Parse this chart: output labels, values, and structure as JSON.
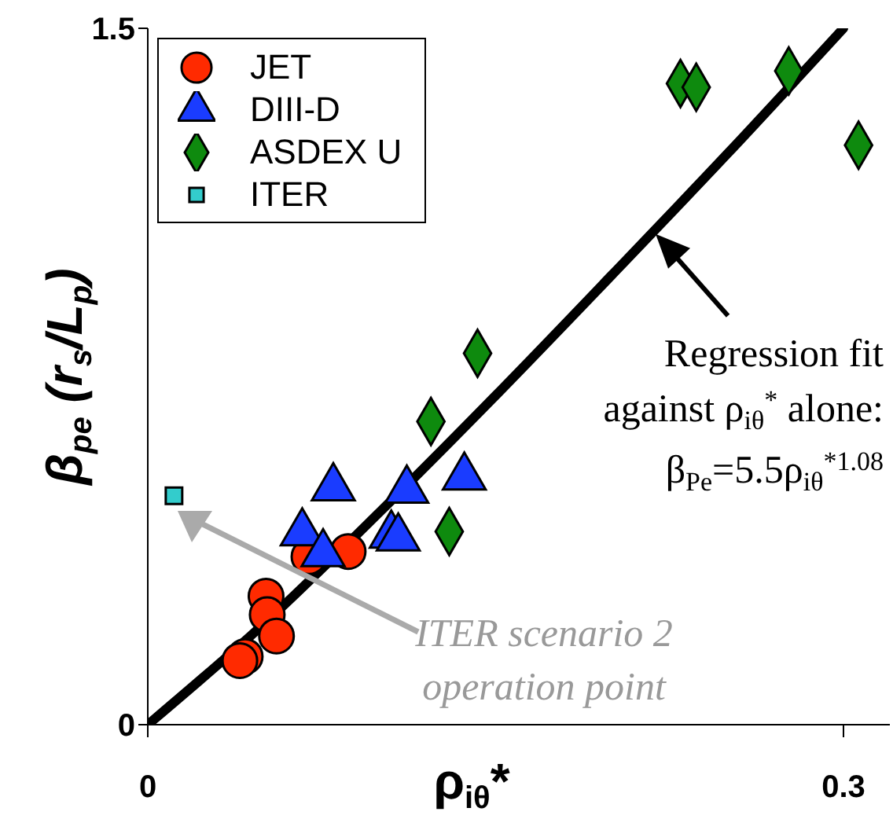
{
  "chart_data": {
    "type": "scatter",
    "xlabel": "ρ$_{iθ}$*",
    "ylabel": "β$_{pe}$ (r$_{s}$/L$_{p}$)",
    "xlim": [
      0,
      0.32
    ],
    "xticks": [
      0,
      0.3
    ],
    "ylim": [
      0,
      1.5
    ],
    "yticks": [
      0,
      1.5
    ],
    "grid": false,
    "legend": "top left",
    "series": [
      {
        "name": "JET",
        "color": "#ff2a00",
        "marker": "circle",
        "x": [
          0.0695,
          0.0864,
          0.051,
          0.0515,
          0.0555,
          0.042,
          0.0397
        ],
        "values": [
          0.362,
          0.373,
          0.277,
          0.237,
          0.191,
          0.147,
          0.138
        ]
      },
      {
        "name": "DIII-D",
        "color": "#1a3cff",
        "marker": "triangle",
        "x": [
          0.08,
          0.0666,
          0.0756,
          0.1117,
          0.105,
          0.108,
          0.1365
        ],
        "values": [
          0.51,
          0.413,
          0.368,
          0.505,
          0.408,
          0.402,
          0.533
        ]
      },
      {
        "name": "ASDEX U",
        "color": "#0e8a0e",
        "marker": "diamond",
        "x": [
          0.2297,
          0.2365,
          0.2764,
          0.3065,
          0.1422,
          0.1221,
          0.13
        ],
        "values": [
          1.381,
          1.373,
          1.408,
          1.248,
          0.8,
          0.653,
          0.416
        ]
      },
      {
        "name": "ITER",
        "color": "#33cccc",
        "marker": "square",
        "x": [
          0.0113
        ],
        "values": [
          0.493
        ]
      },
      {
        "type": "line",
        "color": "#000000",
        "marker": "none",
        "line_style": "solid",
        "x": [
          0,
          0.05,
          0.1,
          0.15,
          0.2,
          0.25,
          0.3
        ],
        "values": [
          0,
          0.217,
          0.458,
          0.709,
          0.968,
          1.23,
          1.5
        ]
      }
    ],
    "annotations": [
      {
        "text": "Regression fit against ρ$_{iθ}$$^{*}$ alone:",
        "x": 0.219,
        "y": 1.057
      },
      "β$_{Pe}$=5.5ρ$_{iθ}$$^{*1.08}$",
      "ITER scenario 2 operation point"
    ]
  }
}
